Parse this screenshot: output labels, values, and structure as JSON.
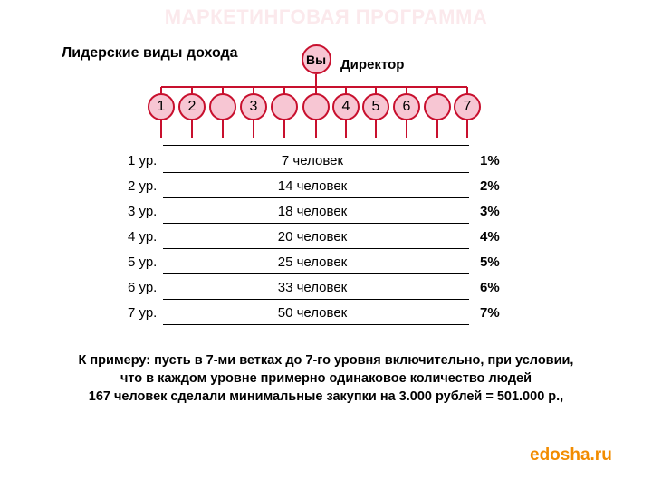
{
  "title": "МАРКЕТИНГОВАЯ ПРОГРАММА",
  "subtitle": "Лидерские виды дохода",
  "top_node": {
    "text": "Вы",
    "label": "Директор"
  },
  "nodes": [
    "1",
    "2",
    "",
    "3",
    "",
    "",
    "4",
    "5",
    "6",
    "",
    "7"
  ],
  "levels": [
    {
      "level": "1 ур.",
      "count": "7 человек",
      "percent": "1%"
    },
    {
      "level": "2 ур.",
      "count": "14 человек",
      "percent": "2%"
    },
    {
      "level": "3 ур.",
      "count": "18 человек",
      "percent": "3%"
    },
    {
      "level": "4 ур.",
      "count": "20 человек",
      "percent": "4%"
    },
    {
      "level": "5 ур.",
      "count": "25 человек",
      "percent": "5%"
    },
    {
      "level": "6 ур.",
      "count": "33 человек",
      "percent": "6%"
    },
    {
      "level": "7 ур.",
      "count": "50 человек",
      "percent": "7%"
    }
  ],
  "note": [
    "К примеру: пусть в 7-ми ветках до 7-го уровня включительно, при условии,",
    "что в каждом уровне примерно одинаковое количество людей",
    "167 человек сделали минимальные закупки на 3.000 рублей = 501.000 р.,"
  ],
  "watermark": "edosha.ru",
  "colors": {
    "node_fill": "#f7c6d3",
    "node_border": "#c8102e",
    "watermark": "#f28c00"
  }
}
